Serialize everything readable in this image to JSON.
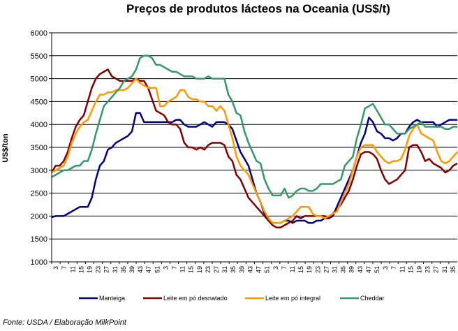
{
  "chart_data": {
    "type": "line",
    "title": "Preços de produtos lácteos na Oceania (US$/t)",
    "ylabel": "US$/ton",
    "xlabel": "",
    "ylim": [
      1000,
      6000
    ],
    "yticks": [
      1000,
      1500,
      2000,
      2500,
      3000,
      3500,
      4000,
      4500,
      5000,
      5500,
      6000
    ],
    "grid": "horizontal",
    "legend_position": "bottom",
    "x_tick_labels": [
      "3",
      "7",
      "11",
      "15",
      "19",
      "23",
      "27",
      "31",
      "35",
      "39",
      "43",
      "47",
      "51",
      "3",
      "7",
      "11",
      "15",
      "19",
      "23",
      "27",
      "31",
      "35",
      "39",
      "43",
      "47",
      "51",
      "3",
      "7",
      "11",
      "15",
      "19",
      "23",
      "27",
      "31",
      "35",
      "39",
      "43",
      "47",
      "51",
      "3",
      "7",
      "11",
      "15",
      "19",
      "23",
      "27",
      "31",
      "35"
    ],
    "series": [
      {
        "name": "Manteiga",
        "color": "#000080",
        "values": [
          1975,
          2000,
          2000,
          2000,
          2050,
          2100,
          2150,
          2200,
          2200,
          2200,
          2400,
          2800,
          3100,
          3200,
          3450,
          3500,
          3600,
          3650,
          3700,
          3750,
          3850,
          4250,
          4250,
          4050,
          4050,
          4050,
          4050,
          4050,
          4050,
          4050,
          4050,
          4100,
          4100,
          4000,
          3950,
          3950,
          3950,
          4000,
          4050,
          4000,
          3950,
          4050,
          4050,
          4050,
          4000,
          3900,
          3650,
          3400,
          3250,
          3100,
          2800,
          2500,
          2300,
          2050,
          1900,
          1850,
          1850,
          1850,
          1900,
          1900,
          1850,
          1900,
          1900,
          1900,
          1850,
          1850,
          1900,
          1900,
          1950,
          1950,
          2000,
          2200,
          2400,
          2600,
          2800,
          3000,
          3300,
          3600,
          3800,
          4150,
          4050,
          3850,
          3800,
          3700,
          3700,
          3650,
          3700,
          3800,
          3800,
          3950,
          4050,
          4100,
          4050,
          4050,
          4050,
          4050,
          3950,
          4000,
          4050,
          4100,
          4100,
          4100
        ]
      },
      {
        "name": "Leite em pó desnatado",
        "color": "#800000",
        "values": [
          2950,
          3100,
          3100,
          3200,
          3400,
          3700,
          3950,
          4100,
          4200,
          4500,
          4800,
          5000,
          5100,
          5150,
          5200,
          5050,
          5000,
          4950,
          4950,
          4950,
          4950,
          5000,
          4950,
          4950,
          4800,
          4550,
          4300,
          4250,
          4200,
          4050,
          4000,
          4000,
          3900,
          3600,
          3500,
          3500,
          3450,
          3500,
          3450,
          3550,
          3600,
          3600,
          3600,
          3550,
          3300,
          3200,
          2900,
          2800,
          2600,
          2400,
          2300,
          2200,
          2100,
          2000,
          1900,
          1800,
          1750,
          1750,
          1800,
          1850,
          1900,
          2000,
          1950,
          2000,
          2000,
          2000,
          2000,
          2000,
          2000,
          1950,
          2050,
          2150,
          2250,
          2400,
          2550,
          2800,
          3100,
          3350,
          3400,
          3400,
          3350,
          3250,
          3000,
          2800,
          2700,
          2750,
          2800,
          2900,
          3000,
          3500,
          3550,
          3550,
          3400,
          3200,
          3250,
          3150,
          3100,
          3050,
          2950,
          3000,
          3100,
          3150
        ]
      },
      {
        "name": "Leite em pó integral",
        "color": "#ff9900",
        "values": [
          2950,
          3000,
          3050,
          3100,
          3300,
          3600,
          3800,
          3950,
          4050,
          4100,
          4300,
          4500,
          4650,
          4650,
          4700,
          4700,
          4750,
          4750,
          4750,
          4800,
          4900,
          5000,
          4900,
          4850,
          4800,
          4800,
          4800,
          4400,
          4400,
          4500,
          4550,
          4600,
          4750,
          4750,
          4600,
          4550,
          4550,
          4500,
          4500,
          4400,
          4400,
          4300,
          4400,
          4300,
          4000,
          3700,
          3300,
          3100,
          3000,
          2900,
          2700,
          2500,
          2300,
          2100,
          1950,
          1850,
          1850,
          1850,
          1900,
          1950,
          2000,
          2100,
          2200,
          2200,
          2200,
          2050,
          2000,
          2000,
          1950,
          2000,
          2050,
          2100,
          2300,
          2500,
          2700,
          3000,
          3300,
          3500,
          3550,
          3550,
          3550,
          3400,
          3300,
          3200,
          3150,
          3200,
          3200,
          3250,
          3450,
          3750,
          3900,
          4000,
          3800,
          3750,
          3700,
          3650,
          3400,
          3200,
          3150,
          3200,
          3300,
          3400
        ]
      },
      {
        "name": "Cheddar",
        "color": "#339966",
        "values": [
          2850,
          2900,
          2950,
          3000,
          3000,
          3050,
          3100,
          3100,
          3200,
          3200,
          3450,
          3800,
          4100,
          4400,
          4500,
          4600,
          4700,
          4800,
          4950,
          5000,
          5050,
          5200,
          5450,
          5500,
          5500,
          5450,
          5300,
          5300,
          5250,
          5200,
          5150,
          5150,
          5100,
          5050,
          5050,
          5050,
          5000,
          5000,
          5000,
          5050,
          5000,
          5000,
          5000,
          5000,
          4650,
          4500,
          4250,
          4200,
          3850,
          3600,
          3400,
          3200,
          3150,
          2800,
          2600,
          2450,
          2450,
          2450,
          2600,
          2400,
          2450,
          2550,
          2600,
          2600,
          2550,
          2550,
          2600,
          2700,
          2700,
          2700,
          2700,
          2750,
          2800,
          3100,
          3200,
          3300,
          3700,
          4000,
          4350,
          4400,
          4450,
          4300,
          4150,
          4000,
          4000,
          3900,
          3800,
          3800,
          3800,
          3900,
          3950,
          4000,
          4050,
          3950,
          3950,
          3950,
          3950,
          3950,
          3900,
          3900,
          3950,
          3950
        ]
      }
    ]
  },
  "source": "Fonte: USDA / Elaboração MilkPoint"
}
